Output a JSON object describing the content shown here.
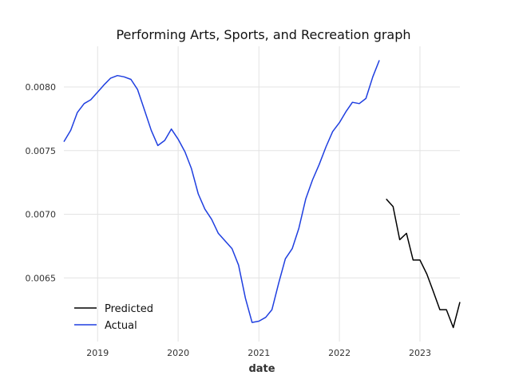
{
  "chart_data": {
    "type": "line",
    "title": "Performing Arts, Sports, and Recreation graph",
    "xlabel": "date",
    "ylabel": "",
    "x_ticks": [
      "2019",
      "2020",
      "2021",
      "2022",
      "2023"
    ],
    "y_ticks": [
      "0.0065",
      "0.0070",
      "0.0075",
      "0.0080"
    ],
    "xlim": [
      "2018-08-01",
      "2023-07-01"
    ],
    "ylim": [
      0.006,
      0.00832
    ],
    "grid": true,
    "legend": {
      "placement": "lower-left",
      "entries": [
        "Predicted",
        "Actual"
      ]
    },
    "series": [
      {
        "name": "Actual",
        "color": "#1f3fe0",
        "points": [
          [
            "2018-08-01",
            0.00757
          ],
          [
            "2018-09-01",
            0.00766
          ],
          [
            "2018-10-01",
            0.0078
          ],
          [
            "2018-11-01",
            0.00787
          ],
          [
            "2018-12-01",
            0.0079
          ],
          [
            "2019-01-01",
            0.00796
          ],
          [
            "2019-02-01",
            0.00802
          ],
          [
            "2019-03-01",
            0.00807
          ],
          [
            "2019-04-01",
            0.00809
          ],
          [
            "2019-05-01",
            0.00808
          ],
          [
            "2019-06-01",
            0.00806
          ],
          [
            "2019-07-01",
            0.00798
          ],
          [
            "2019-08-01",
            0.00782
          ],
          [
            "2019-09-01",
            0.00766
          ],
          [
            "2019-10-01",
            0.00754
          ],
          [
            "2019-11-01",
            0.00758
          ],
          [
            "2019-12-01",
            0.00767
          ],
          [
            "2020-01-01",
            0.00759
          ],
          [
            "2020-02-01",
            0.00749
          ],
          [
            "2020-03-01",
            0.00736
          ],
          [
            "2020-04-01",
            0.00716
          ],
          [
            "2020-05-01",
            0.00704
          ],
          [
            "2020-06-01",
            0.00696
          ],
          [
            "2020-07-01",
            0.00685
          ],
          [
            "2020-08-01",
            0.00679
          ],
          [
            "2020-09-01",
            0.00673
          ],
          [
            "2020-10-01",
            0.0066
          ],
          [
            "2020-11-01",
            0.00634
          ],
          [
            "2020-12-01",
            0.00615
          ],
          [
            "2021-01-01",
            0.00616
          ],
          [
            "2021-02-01",
            0.00619
          ],
          [
            "2021-03-01",
            0.00625
          ],
          [
            "2021-04-01",
            0.00646
          ],
          [
            "2021-05-01",
            0.00665
          ],
          [
            "2021-06-01",
            0.00673
          ],
          [
            "2021-07-01",
            0.00689
          ],
          [
            "2021-08-01",
            0.00712
          ],
          [
            "2021-09-01",
            0.00727
          ],
          [
            "2021-10-01",
            0.00739
          ],
          [
            "2021-11-01",
            0.00753
          ],
          [
            "2021-12-01",
            0.00765
          ],
          [
            "2022-01-01",
            0.00772
          ],
          [
            "2022-02-01",
            0.00781
          ],
          [
            "2022-03-01",
            0.00788
          ],
          [
            "2022-04-01",
            0.00787
          ],
          [
            "2022-05-01",
            0.00791
          ],
          [
            "2022-06-01",
            0.00808
          ],
          [
            "2022-07-01",
            0.00821
          ]
        ]
      },
      {
        "name": "Predicted",
        "color": "#000000",
        "points": [
          [
            "2022-08-01",
            0.00712
          ],
          [
            "2022-09-01",
            0.00706
          ],
          [
            "2022-10-01",
            0.0068
          ],
          [
            "2022-11-01",
            0.00685
          ],
          [
            "2022-12-01",
            0.00664
          ],
          [
            "2023-01-01",
            0.00664
          ],
          [
            "2023-02-01",
            0.00653
          ],
          [
            "2023-03-01",
            0.0064
          ],
          [
            "2023-04-01",
            0.00625
          ],
          [
            "2023-05-01",
            0.00625
          ],
          [
            "2023-06-01",
            0.00611
          ],
          [
            "2023-07-01",
            0.00631
          ]
        ]
      }
    ]
  }
}
